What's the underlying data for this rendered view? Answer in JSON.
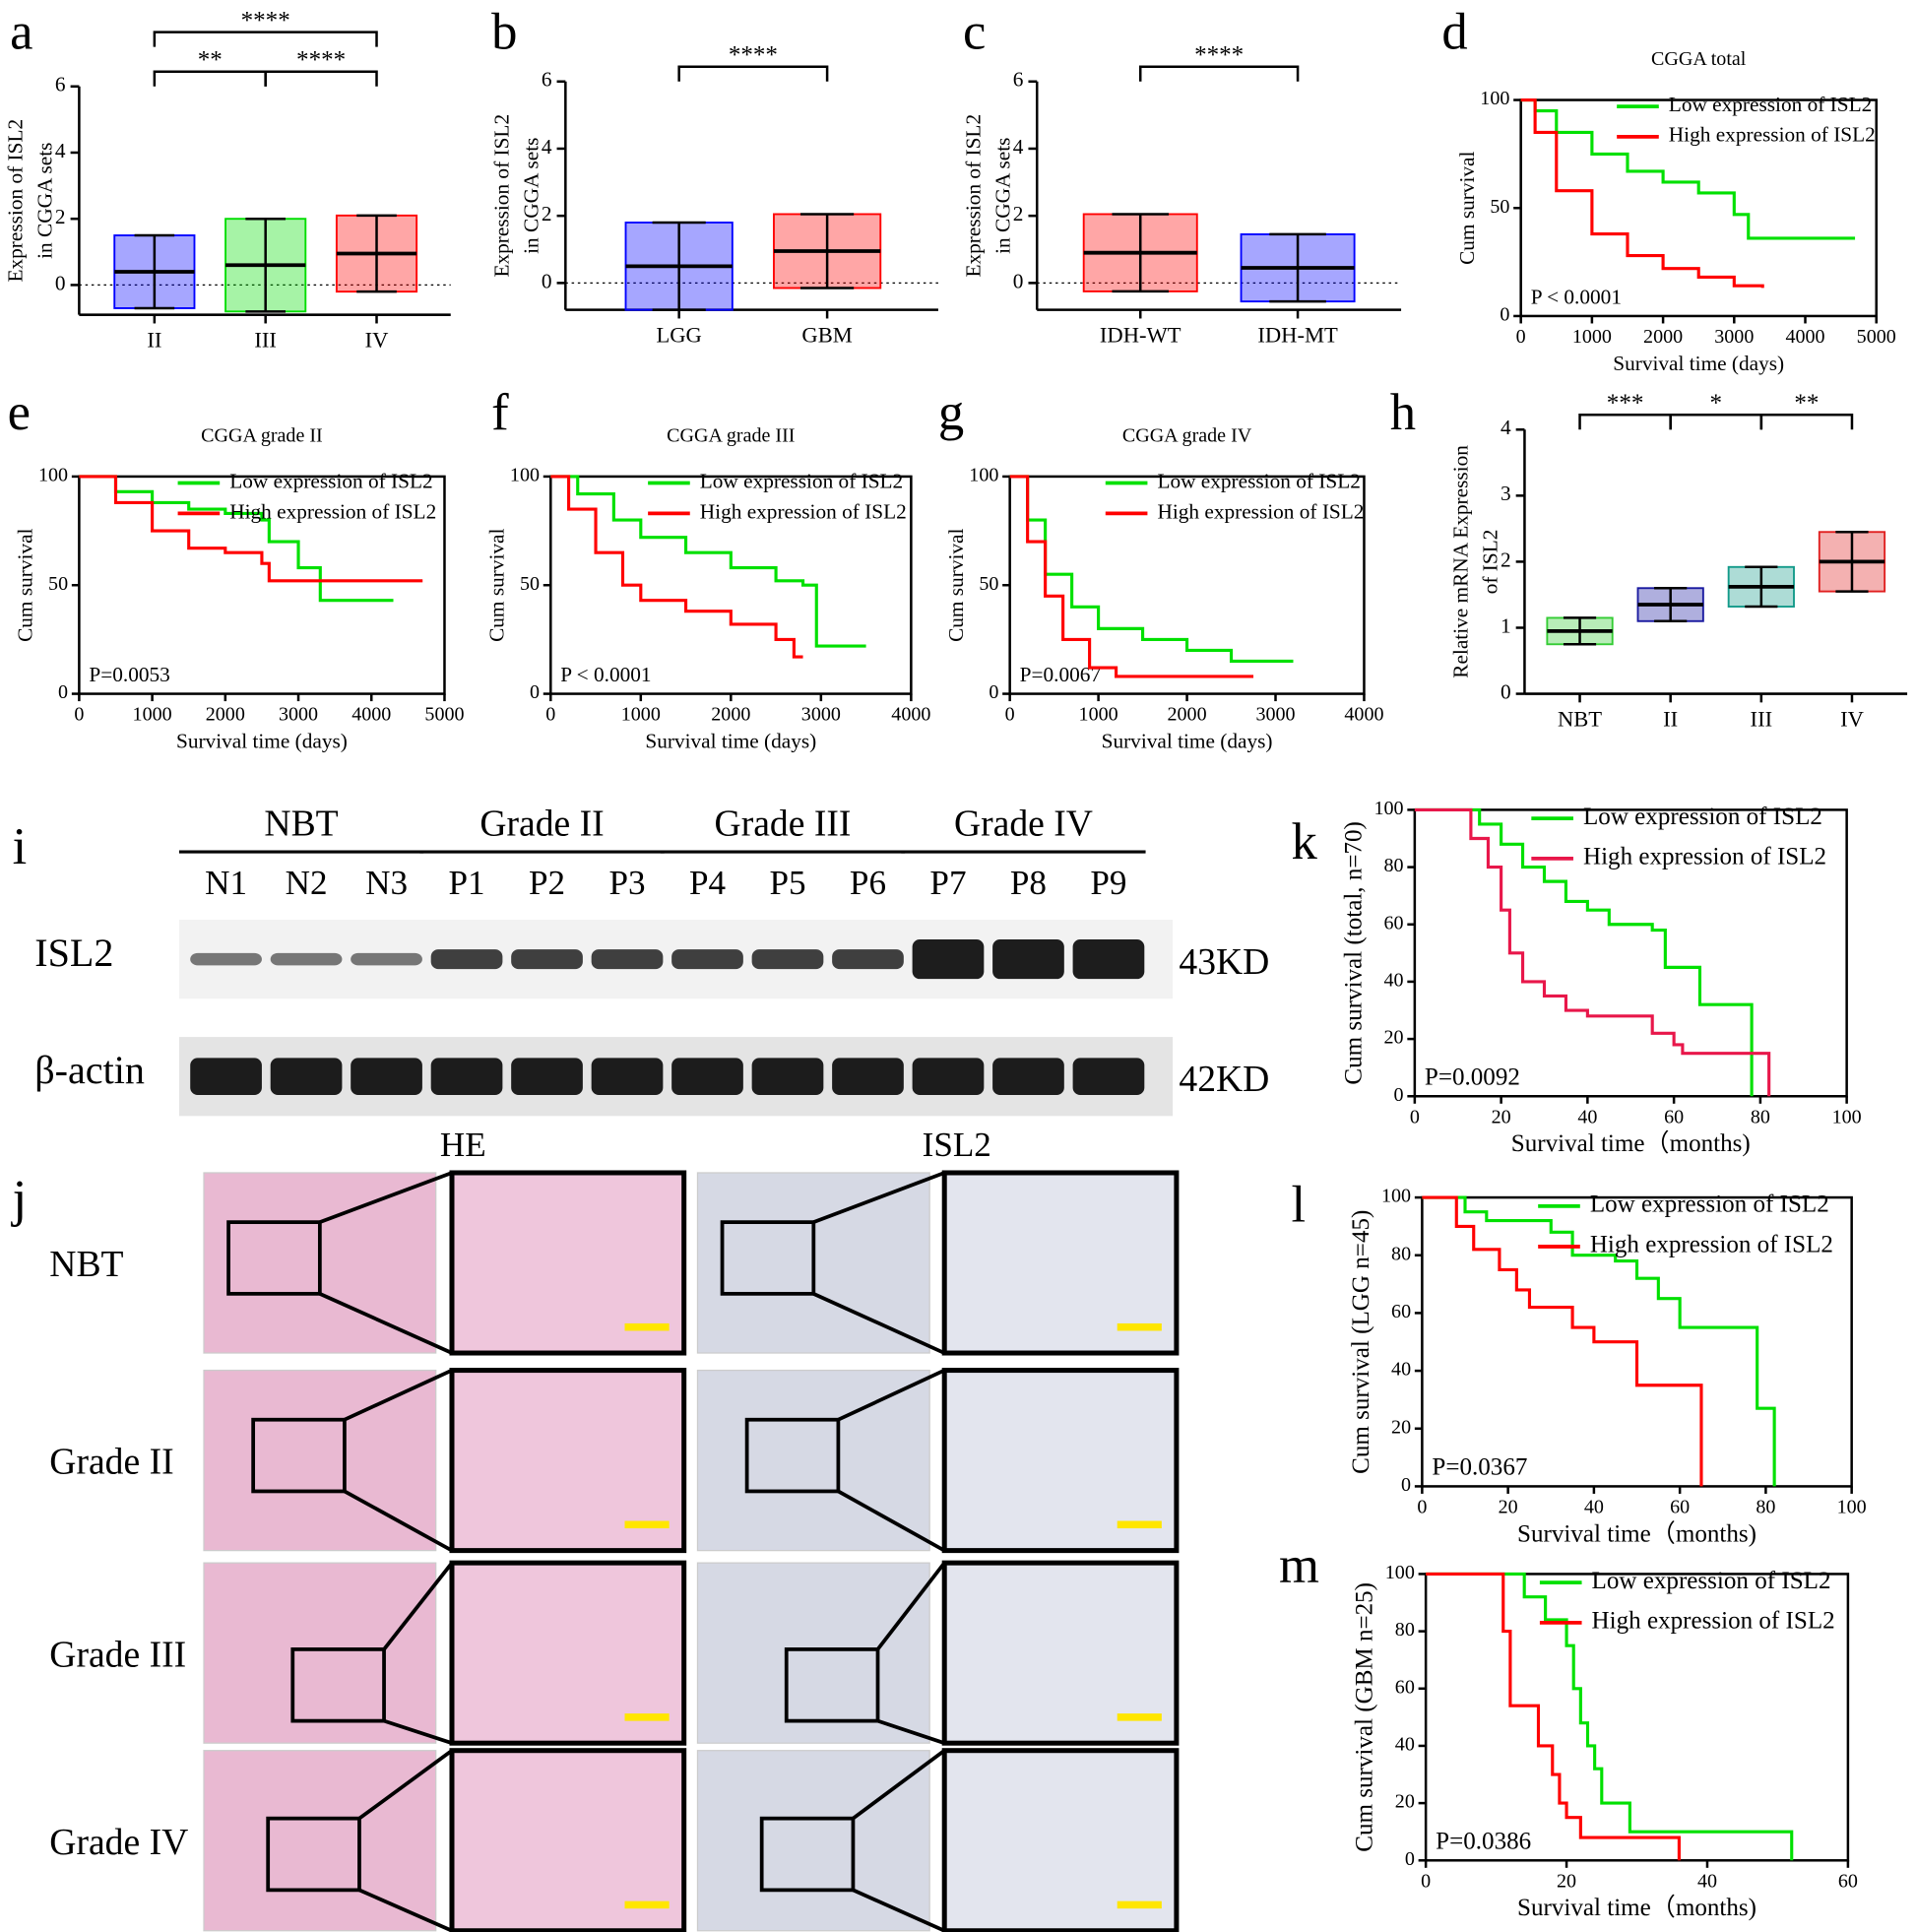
{
  "chart_data": [
    {
      "panel": "a",
      "type": "dot",
      "ylabel": [
        "Expression of ISL2",
        "in CGGA sets"
      ],
      "categories": [
        "II",
        "III",
        "IV"
      ],
      "values": [
        0.4,
        0.6,
        0.95
      ],
      "sds": [
        1.1,
        1.4,
        1.15
      ],
      "colors": [
        "#0000ff",
        "#00dd00",
        "#ff0000"
      ],
      "ylim": [
        -0.9,
        6
      ],
      "yticks": [
        0,
        2,
        4,
        6
      ],
      "comparisons": [
        {
          "pair": [
            0,
            1
          ],
          "label": "**"
        },
        {
          "pair": [
            1,
            2
          ],
          "label": "****"
        },
        {
          "pair": [
            0,
            2
          ],
          "label": "****"
        }
      ]
    },
    {
      "panel": "b",
      "type": "dot",
      "ylabel": [
        "Expression of ISL2",
        "in CGGA sets"
      ],
      "categories": [
        "LGG",
        "GBM"
      ],
      "values": [
        0.5,
        0.95
      ],
      "sds": [
        1.3,
        1.1
      ],
      "colors": [
        "#0000ff",
        "#ff0000"
      ],
      "ylim": [
        -0.8,
        6
      ],
      "yticks": [
        0,
        2,
        4,
        6
      ],
      "comparisons": [
        {
          "pair": [
            0,
            1
          ],
          "label": "****"
        }
      ]
    },
    {
      "panel": "c",
      "type": "dot",
      "ylabel": [
        "Expression of ISL2",
        "in CGGA sets"
      ],
      "categories": [
        "IDH-WT",
        "IDH-MT"
      ],
      "values": [
        0.9,
        0.45
      ],
      "sds": [
        1.15,
        1.0
      ],
      "colors": [
        "#ff0000",
        "#0000ff"
      ],
      "ylim": [
        -0.8,
        6
      ],
      "yticks": [
        0,
        2,
        4,
        6
      ],
      "comparisons": [
        {
          "pair": [
            0,
            1
          ],
          "label": "****"
        }
      ]
    },
    {
      "panel": "d",
      "type": "survival",
      "title": "CGGA  total",
      "xlabel": "Survival time (days)",
      "ylabel": "Cum survival",
      "p_value": "P < 0.0001",
      "xlim": [
        0,
        5000
      ],
      "xticks": [
        0,
        1000,
        2000,
        3000,
        4000,
        5000
      ],
      "ylim": [
        0,
        100
      ],
      "yticks": [
        0,
        50,
        100
      ],
      "series": [
        {
          "name": "Low expression of ISL2",
          "color": "#00e000",
          "x": [
            0,
            200,
            500,
            1000,
            1500,
            2000,
            2500,
            3000,
            3200,
            4700
          ],
          "values": [
            100,
            95,
            85,
            75,
            67,
            62,
            57,
            47,
            36,
            36
          ]
        },
        {
          "name": "High expression of ISL2",
          "color": "#ff0000",
          "x": [
            0,
            200,
            500,
            1000,
            1500,
            2000,
            2500,
            3000,
            3400
          ],
          "values": [
            100,
            85,
            58,
            38,
            28,
            22,
            18,
            14,
            13
          ]
        }
      ]
    },
    {
      "panel": "e",
      "type": "survival",
      "title": "CGGA grade II",
      "xlabel": "Survival time (days)",
      "ylabel": "Cum survival",
      "p_value": "P=0.0053",
      "xlim": [
        0,
        5000
      ],
      "xticks": [
        0,
        1000,
        2000,
        3000,
        4000,
        5000
      ],
      "ylim": [
        0,
        100
      ],
      "yticks": [
        0,
        50,
        100
      ],
      "series": [
        {
          "name": "Low expression of ISL2",
          "color": "#00e000",
          "x": [
            0,
            500,
            1000,
            1500,
            2000,
            2500,
            2600,
            3000,
            3300,
            4300
          ],
          "values": [
            100,
            93,
            88,
            85,
            83,
            80,
            70,
            58,
            43,
            43
          ]
        },
        {
          "name": "High expression of ISL2",
          "color": "#ff0000",
          "x": [
            0,
            500,
            1000,
            1500,
            2000,
            2500,
            2600,
            4700
          ],
          "values": [
            100,
            88,
            75,
            67,
            65,
            60,
            52,
            52
          ]
        }
      ]
    },
    {
      "panel": "f",
      "type": "survival",
      "title": "CGGA grade III",
      "xlabel": "Survival time (days)",
      "ylabel": "Cum survival",
      "p_value": "P < 0.0001",
      "xlim": [
        0,
        4000
      ],
      "xticks": [
        0,
        1000,
        2000,
        3000,
        4000
      ],
      "ylim": [
        0,
        100
      ],
      "yticks": [
        0,
        50,
        100
      ],
      "series": [
        {
          "name": "Low expression of ISL2",
          "color": "#00e000",
          "x": [
            0,
            300,
            700,
            1000,
            1500,
            2000,
            2500,
            2800,
            2950,
            3500
          ],
          "values": [
            100,
            92,
            80,
            72,
            65,
            58,
            52,
            50,
            22,
            22
          ]
        },
        {
          "name": "High expression of ISL2",
          "color": "#ff0000",
          "x": [
            0,
            200,
            500,
            800,
            1000,
            1500,
            2000,
            2500,
            2700,
            2800
          ],
          "values": [
            100,
            85,
            65,
            50,
            43,
            38,
            32,
            25,
            17,
            17
          ]
        }
      ]
    },
    {
      "panel": "g",
      "type": "survival",
      "title": "CGGA grade IV",
      "xlabel": "Survival time (days)",
      "ylabel": "Cum survival",
      "p_value": "P=0.0067",
      "xlim": [
        0,
        4000
      ],
      "xticks": [
        0,
        1000,
        2000,
        3000,
        4000
      ],
      "ylim": [
        0,
        100
      ],
      "yticks": [
        0,
        50,
        100
      ],
      "series": [
        {
          "name": "Low expression of ISL2",
          "color": "#00e000",
          "x": [
            0,
            200,
            400,
            700,
            1000,
            1500,
            2000,
            2500,
            3200
          ],
          "values": [
            100,
            80,
            55,
            40,
            30,
            25,
            20,
            15,
            15
          ]
        },
        {
          "name": "High expression of ISL2",
          "color": "#ff0000",
          "x": [
            0,
            200,
            400,
            600,
            900,
            1200,
            2000,
            2750
          ],
          "values": [
            100,
            70,
            45,
            25,
            12,
            8,
            8,
            8
          ]
        }
      ]
    },
    {
      "panel": "h",
      "type": "dot",
      "ylabel": [
        "Relative mRNA Expression",
        "of ISL2"
      ],
      "categories": [
        "NBT",
        "II",
        "III",
        "IV"
      ],
      "values": [
        0.95,
        1.35,
        1.62,
        2.0
      ],
      "sds": [
        0.2,
        0.25,
        0.3,
        0.45
      ],
      "colors": [
        "#33cc33",
        "#1a1aa0",
        "#139a8a",
        "#e02020"
      ],
      "ylim": [
        0,
        4
      ],
      "yticks": [
        0,
        1,
        2,
        3,
        4
      ],
      "comparisons": [
        {
          "pair": [
            0,
            1
          ],
          "label": "***"
        },
        {
          "pair": [
            1,
            2
          ],
          "label": "*"
        },
        {
          "pair": [
            2,
            3
          ],
          "label": "**"
        }
      ]
    },
    {
      "panel": "k",
      "type": "survival",
      "xlabel": "Survival time（months)",
      "ylabel": "Cum survival (total, n=70)",
      "p_value": "P=0.0092",
      "xlim": [
        0,
        100
      ],
      "xticks": [
        0,
        20,
        40,
        60,
        80,
        100
      ],
      "ylim": [
        0,
        100
      ],
      "yticks": [
        0,
        20,
        40,
        60,
        80,
        100
      ],
      "series": [
        {
          "name": "Low expression of ISL2",
          "color": "#00e000",
          "x": [
            0,
            15,
            20,
            25,
            30,
            35,
            40,
            45,
            55,
            58,
            66,
            78
          ],
          "values": [
            100,
            95,
            88,
            80,
            75,
            68,
            65,
            60,
            58,
            45,
            32,
            0
          ]
        },
        {
          "name": "High expression of ISL2",
          "color": "#e8174a",
          "x": [
            0,
            13,
            17,
            20,
            22,
            25,
            30,
            35,
            40,
            55,
            60,
            62,
            82
          ],
          "values": [
            100,
            90,
            80,
            65,
            50,
            40,
            35,
            30,
            28,
            22,
            18,
            15,
            0
          ]
        }
      ]
    },
    {
      "panel": "l",
      "type": "survival",
      "xlabel": "Survival time（months)",
      "ylabel": "Cum survival (LGG n=45)",
      "p_value": "P=0.0367",
      "xlim": [
        0,
        100
      ],
      "xticks": [
        0,
        20,
        40,
        60,
        80,
        100
      ],
      "ylim": [
        0,
        100
      ],
      "yticks": [
        0,
        20,
        40,
        60,
        80,
        100
      ],
      "series": [
        {
          "name": "Low expression of ISL2",
          "color": "#00e000",
          "x": [
            0,
            10,
            15,
            30,
            35,
            45,
            50,
            55,
            60,
            78,
            82
          ],
          "values": [
            100,
            95,
            92,
            88,
            80,
            78,
            72,
            65,
            55,
            27,
            0
          ]
        },
        {
          "name": "High expression of ISL2",
          "color": "#ff0000",
          "x": [
            0,
            8,
            12,
            18,
            22,
            25,
            35,
            40,
            50,
            65
          ],
          "values": [
            100,
            90,
            82,
            75,
            68,
            62,
            55,
            50,
            35,
            0
          ]
        }
      ]
    },
    {
      "panel": "m",
      "type": "survival",
      "xlabel": "Survival time（months)",
      "ylabel": "Cum survival (GBM n=25)",
      "p_value": "P=0.0386",
      "xlim": [
        0,
        60
      ],
      "xticks": [
        0,
        20,
        40,
        60
      ],
      "ylim": [
        0,
        100
      ],
      "yticks": [
        0,
        20,
        40,
        60,
        80,
        100
      ],
      "series": [
        {
          "name": "Low expression of ISL2",
          "color": "#00e000",
          "x": [
            0,
            14,
            17,
            20,
            21,
            22,
            23,
            24,
            25,
            29,
            52
          ],
          "values": [
            100,
            92,
            84,
            75,
            60,
            48,
            40,
            32,
            20,
            10,
            0
          ]
        },
        {
          "name": "High expression of ISL2",
          "color": "#ff0000",
          "x": [
            0,
            11,
            12,
            16,
            18,
            19,
            20,
            22,
            36
          ],
          "values": [
            100,
            80,
            54,
            40,
            30,
            20,
            15,
            8,
            0
          ]
        }
      ]
    }
  ],
  "blot": {
    "panel": "i",
    "groups": [
      "NBT",
      "Grade II",
      "Grade III",
      "Grade IV"
    ],
    "lanes": [
      "N1",
      "N2",
      "N3",
      "P1",
      "P2",
      "P3",
      "P4",
      "P5",
      "P6",
      "P7",
      "P8",
      "P9"
    ],
    "rows": [
      {
        "label": "ISL2",
        "size": "43KD"
      },
      {
        "label": "β-actin",
        "size": "42KD"
      }
    ]
  },
  "histology": {
    "panel": "j",
    "columns": [
      "HE",
      "ISL2"
    ],
    "rows": [
      "NBT",
      "Grade II",
      "Grade III",
      "Grade IV"
    ]
  }
}
